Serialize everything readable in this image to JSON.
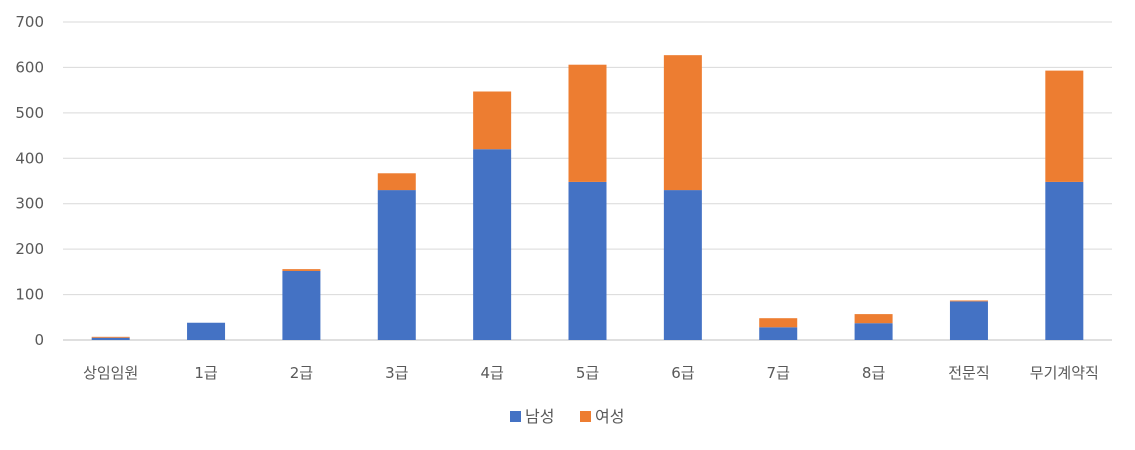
{
  "chart_data": {
    "type": "bar",
    "stacked": true,
    "categories": [
      "상임임원",
      "1급",
      "2급",
      "3급",
      "4급",
      "5급",
      "6급",
      "7급",
      "8급",
      "전문직",
      "무기계약직"
    ],
    "series": [
      {
        "name": "남성",
        "color": "#4472C4",
        "values": [
          5,
          38,
          152,
          330,
          420,
          348,
          330,
          28,
          37,
          85,
          348
        ]
      },
      {
        "name": "여성",
        "color": "#ED7D31",
        "values": [
          2,
          0,
          4,
          37,
          127,
          258,
          297,
          20,
          20,
          2,
          245
        ]
      }
    ],
    "yticks": [
      0,
      100,
      200,
      300,
      400,
      500,
      600,
      700
    ],
    "ylim": [
      0,
      700
    ],
    "grid": true,
    "legend_position": "bottom"
  }
}
